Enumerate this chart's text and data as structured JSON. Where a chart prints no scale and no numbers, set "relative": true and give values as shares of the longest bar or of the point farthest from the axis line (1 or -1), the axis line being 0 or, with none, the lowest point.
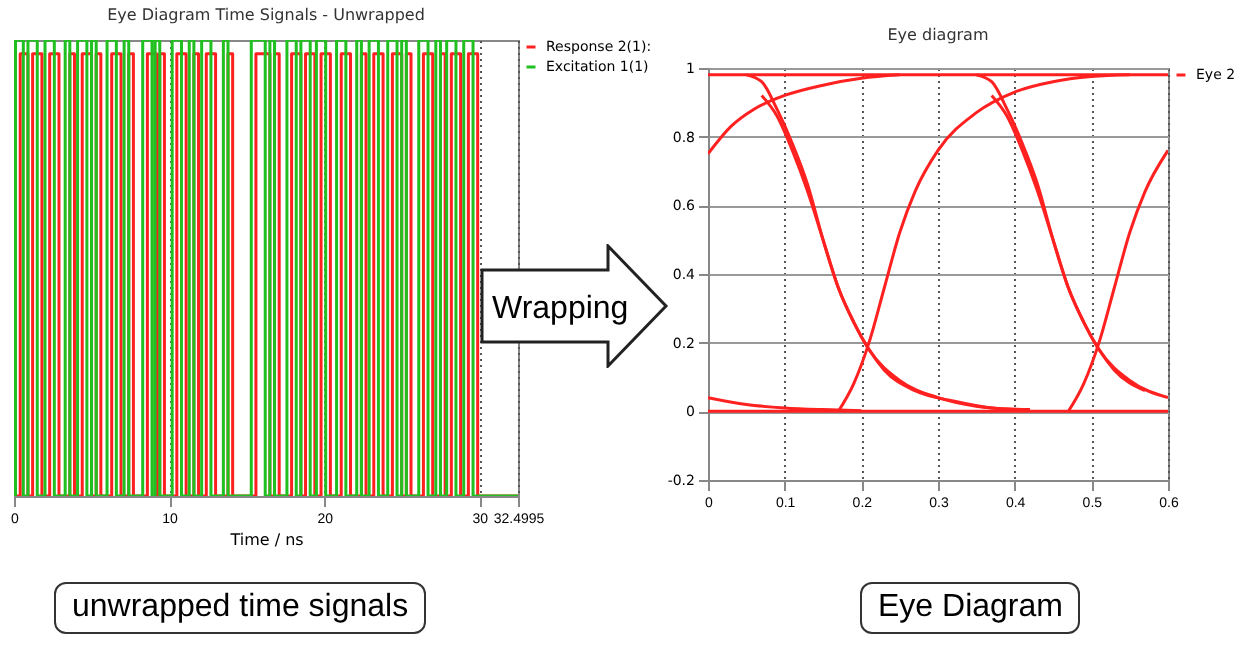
{
  "chart_data": [
    {
      "type": "step",
      "title": "Eye Diagram Time Signals - Unwrapped",
      "xlabel": "Time / ns",
      "relative": true,
      "xlim": [
        0,
        32.4995
      ],
      "xticks": [
        0,
        10,
        20,
        30,
        32.4995
      ],
      "grid": "x",
      "legend": "top right",
      "annotations": [
        "unwrapped time signals"
      ],
      "series": [
        {
          "name": "Response 2(1):",
          "color": "#ff2020",
          "x": [
            0,
            0.4,
            0.9,
            1.2,
            1.8,
            2.3,
            2.9,
            3.6,
            3.9,
            4.4,
            5.0,
            5.3,
            5.6,
            6.3,
            6.9,
            7.4,
            7.7,
            8.6,
            9.2,
            9.4,
            9.7,
            10.5,
            11.1,
            11.6,
            11.9,
            12.4,
            13.0,
            13.8,
            14.1,
            15.6,
            16.5,
            16.8,
            17.1,
            17.9,
            18.5,
            18.8,
            19.4,
            19.8,
            20.4,
            21.1,
            21.7,
            22.4,
            22.7,
            23.2,
            23.8,
            24.4,
            25.0,
            25.3,
            25.6,
            26.4,
            27.0,
            27.5,
            27.8,
            28.2,
            28.8,
            29.3,
            29.9,
            32.4995
          ],
          "values": [
            0,
            0.97,
            0,
            0.97,
            0,
            0.97,
            0,
            0.97,
            0,
            0.97,
            0,
            0.97,
            0,
            0.97,
            0,
            0.97,
            0,
            0.97,
            0,
            0.97,
            0,
            0.97,
            0,
            0.97,
            0,
            0.97,
            0,
            0.97,
            0,
            0.97,
            0,
            0.97,
            0,
            0.97,
            0,
            0.97,
            0,
            0.97,
            0,
            0.97,
            0,
            0.97,
            0,
            0.97,
            0,
            0.97,
            0,
            0.97,
            0,
            0.97,
            0,
            0.97,
            0,
            0.97,
            0,
            0.97,
            0,
            0
          ]
        },
        {
          "name": "Excitation 1(1)",
          "color": "#20c020",
          "x": [
            0,
            0.1,
            0.6,
            0.9,
            1.5,
            2.0,
            2.6,
            3.3,
            3.6,
            4.1,
            4.7,
            5.0,
            5.3,
            6.0,
            6.6,
            7.1,
            7.4,
            8.3,
            8.9,
            9.1,
            9.4,
            10.2,
            10.8,
            11.3,
            11.6,
            12.1,
            12.7,
            13.5,
            13.8,
            15.3,
            16.2,
            16.5,
            16.8,
            17.6,
            18.2,
            18.5,
            19.1,
            19.5,
            20.1,
            20.8,
            21.4,
            22.1,
            22.4,
            22.9,
            23.5,
            24.1,
            24.7,
            25.0,
            25.3,
            26.1,
            26.7,
            27.2,
            27.5,
            27.9,
            28.5,
            29.0,
            29.6,
            32.4995
          ],
          "values": [
            0,
            1,
            0,
            1,
            0,
            1,
            0,
            1,
            0,
            1,
            0,
            1,
            0,
            1,
            0,
            1,
            0,
            1,
            0,
            1,
            0,
            1,
            0,
            1,
            0,
            1,
            0,
            1,
            0,
            1,
            0,
            1,
            0,
            1,
            0,
            1,
            0,
            1,
            0,
            1,
            0,
            1,
            0,
            1,
            0,
            1,
            0,
            1,
            0,
            1,
            0,
            1,
            0,
            1,
            0,
            1,
            0,
            0
          ]
        }
      ]
    },
    {
      "type": "line",
      "title": "Eye diagram",
      "xlim": [
        0,
        0.6
      ],
      "xticks": [
        0,
        0.1,
        0.2,
        0.3,
        0.4,
        0.5,
        0.6
      ],
      "ylim": [
        -0.2,
        1
      ],
      "yticks": [
        -0.2,
        0,
        0.2,
        0.4,
        0.6,
        0.8,
        1
      ],
      "grid": true,
      "legend": "top right",
      "annotations": [
        "Wrapping",
        "Eye Diagram"
      ],
      "series": [
        {
          "name": "Eye 2",
          "color": "#ff2020",
          "x": [
            0,
            0.6
          ],
          "values": [
            0.98,
            0.98
          ]
        },
        {
          "color": "#ff2020",
          "x": [
            0,
            0.6
          ],
          "values": [
            0,
            0
          ]
        },
        {
          "color": "#ff2020",
          "x": [
            0,
            0.03,
            0.06,
            0.1,
            0.15,
            0.2,
            0.25
          ],
          "values": [
            0.75,
            0.83,
            0.88,
            0.92,
            0.95,
            0.97,
            0.98
          ]
        },
        {
          "color": "#ff2020",
          "x": [
            0.05,
            0.07,
            0.09,
            0.11,
            0.13,
            0.15,
            0.17,
            0.19,
            0.21,
            0.25,
            0.3,
            0.35,
            0.4
          ],
          "values": [
            0.98,
            0.96,
            0.88,
            0.78,
            0.66,
            0.5,
            0.36,
            0.26,
            0.18,
            0.09,
            0.04,
            0.015,
            0.005
          ]
        },
        {
          "color": "#ff2020",
          "x": [
            0.07,
            0.09,
            0.11,
            0.13,
            0.15,
            0.17,
            0.19,
            0.21,
            0.23,
            0.27,
            0.32,
            0.37,
            0.42
          ],
          "values": [
            0.92,
            0.86,
            0.76,
            0.64,
            0.5,
            0.36,
            0.26,
            0.18,
            0.12,
            0.06,
            0.03,
            0.01,
            0.005
          ]
        },
        {
          "color": "#ff2020",
          "x": [
            0.17,
            0.19,
            0.21,
            0.23,
            0.25,
            0.27,
            0.3,
            0.35,
            0.4,
            0.45,
            0.5,
            0.55
          ],
          "values": [
            0,
            0.08,
            0.2,
            0.36,
            0.52,
            0.64,
            0.76,
            0.87,
            0.93,
            0.96,
            0.975,
            0.98
          ]
        },
        {
          "color": "#ff2020",
          "x": [
            0.35,
            0.37,
            0.39,
            0.41,
            0.43,
            0.45,
            0.47,
            0.49,
            0.51,
            0.55,
            0.6
          ],
          "values": [
            0.98,
            0.96,
            0.88,
            0.78,
            0.66,
            0.5,
            0.36,
            0.26,
            0.18,
            0.09,
            0.04
          ]
        },
        {
          "color": "#ff2020",
          "x": [
            0.37,
            0.39,
            0.41,
            0.43,
            0.45,
            0.47,
            0.49,
            0.51,
            0.53,
            0.57
          ],
          "values": [
            0.92,
            0.86,
            0.76,
            0.64,
            0.5,
            0.36,
            0.26,
            0.18,
            0.12,
            0.06
          ]
        },
        {
          "color": "#ff2020",
          "x": [
            0.47,
            0.49,
            0.51,
            0.53,
            0.55,
            0.57,
            0.6
          ],
          "values": [
            0,
            0.08,
            0.2,
            0.36,
            0.52,
            0.64,
            0.76
          ]
        },
        {
          "color": "#ff2020",
          "x": [
            0,
            0.05,
            0.1,
            0.15,
            0.2
          ],
          "values": [
            0.04,
            0.02,
            0.01,
            0.005,
            0.002
          ]
        }
      ]
    }
  ]
}
